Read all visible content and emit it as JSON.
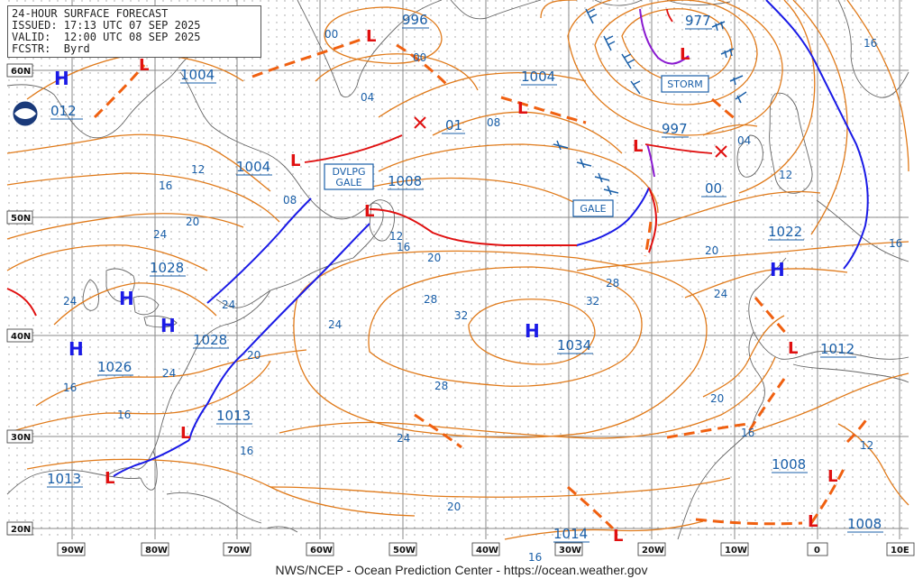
{
  "header": {
    "line1": "24-HOUR SURFACE FORECAST",
    "line2": "ISSUED: 17:13 UTC 07 SEP 2025",
    "line3": "VALID:  12:00 UTC 08 SEP 2025",
    "line4": "FCSTR:  Byrd"
  },
  "footer": "NWS/NCEP - Ocean Prediction Center - https://ocean.weather.gov",
  "colors": {
    "isobar": "#e07a1a",
    "label": "#1a5fa8",
    "cold": "#1a1ae6",
    "warm": "#e01010",
    "trough": "#f06010",
    "grid": "#7f7f7f",
    "coast": "#666666",
    "wind": "#1a5fa8",
    "occluded": "#8a1ad0",
    "track": "#e01010"
  },
  "lat_labels": [
    "60N",
    "50N",
    "40N",
    "30N",
    "20N"
  ],
  "lon_labels": [
    "90W",
    "80W",
    "70W",
    "60W",
    "50W",
    "40W",
    "30W",
    "20W",
    "10W",
    "0",
    "10E"
  ],
  "highs": [
    {
      "symbol": "H",
      "pressure": "1028"
    },
    {
      "symbol": "H",
      "pressure": "1026"
    },
    {
      "symbol": "H",
      "pressure": "1034"
    },
    {
      "symbol": "H",
      "pressure": "1022"
    },
    {
      "symbol": "H",
      "pressure": "1012"
    }
  ],
  "lows": [
    {
      "pressure": "996"
    },
    {
      "pressure": "1004"
    },
    {
      "pressure": "977"
    },
    {
      "pressure": "1004"
    },
    {
      "pressure": "1004"
    },
    {
      "pressure": "997"
    },
    {
      "pressure": "1008"
    },
    {
      "pressure": "1012"
    },
    {
      "pressure": "1013"
    },
    {
      "pressure": "1013"
    },
    {
      "pressure": "1014"
    },
    {
      "pressure": "1008"
    },
    {
      "pressure": "1008"
    }
  ],
  "forecast_positions": [
    "01",
    "00",
    "08"
  ],
  "warnings": [
    "DVLPG\nGALE",
    "STORM",
    "GALE"
  ],
  "isobar_labels": [
    "00",
    "00",
    "04",
    "08",
    "08",
    "12",
    "16",
    "20",
    "24",
    "24",
    "24",
    "24",
    "28",
    "32",
    "32",
    "28",
    "28",
    "24",
    "24",
    "20",
    "20",
    "16",
    "16",
    "12",
    "16",
    "04",
    "16",
    "12",
    "16",
    "20",
    "24",
    "20",
    "16",
    "12",
    "16",
    "20",
    "16"
  ]
}
